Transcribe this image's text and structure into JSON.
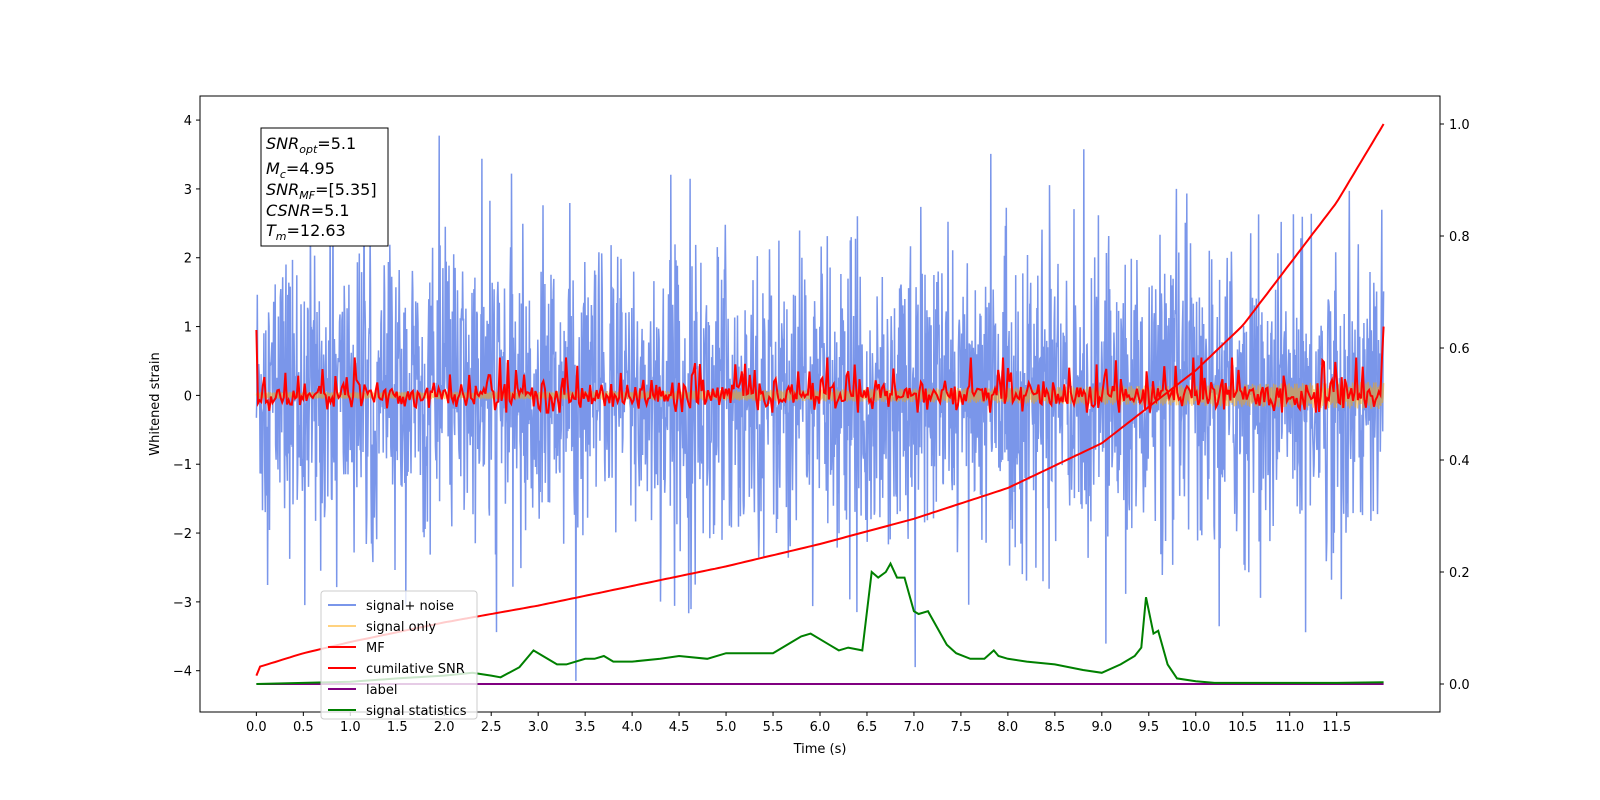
{
  "chart_data": {
    "type": "line",
    "xlabel": "Time (s)",
    "ylabel": "Whitened strain",
    "xlim": [
      -0.6,
      12.6
    ],
    "ylim": [
      -4.6,
      4.35
    ],
    "ylim_right": [
      -0.05,
      1.05
    ],
    "x_ticks": [
      "0.0",
      "0.5",
      "1.0",
      "1.5",
      "2.0",
      "2.5",
      "3.0",
      "3.5",
      "4.0",
      "4.5",
      "5.0",
      "5.5",
      "6.0",
      "6.5",
      "7.0",
      "7.5",
      "8.0",
      "8.5",
      "9.0",
      "9.5",
      "10.0",
      "10.5",
      "11.0",
      "11.5"
    ],
    "y_ticks": [
      "4",
      "3",
      "2",
      "1",
      "0",
      "−1",
      "−2",
      "−3",
      "−4"
    ],
    "y_ticks_right": [
      "1.0",
      "0.8",
      "0.6",
      "0.4",
      "0.2",
      "0.0"
    ],
    "annotation": {
      "snr_opt": {
        "base": "SNR",
        "sub": "opt",
        "value": "=5.1"
      },
      "mc": {
        "base": "M",
        "sub": "c",
        "value": "=4.95"
      },
      "snr_mf": {
        "base": "SNR",
        "sub": "MF",
        "value": "=[5.35]"
      },
      "csnr": {
        "base": "CSNR",
        "sub": "",
        "value": "=5.1"
      },
      "tm": {
        "base": "T",
        "sub": "m",
        "value": "=12.63"
      }
    },
    "legend": {
      "placement": "lower-left",
      "items": [
        {
          "label": "signal+ noise",
          "color": "#4169e1"
        },
        {
          "label": "signal only",
          "color": "#ffa500"
        },
        {
          "label": "MF",
          "color": "#ff0000"
        },
        {
          "label": "cumilative SNR",
          "color": "#ff0000"
        },
        {
          "label": "label",
          "color": "#800080"
        },
        {
          "label": "signal statistics",
          "color": "#008000"
        }
      ]
    },
    "series": [
      {
        "name": "signal+ noise",
        "axis": "left",
        "color": "#4169e1",
        "x_range": [
          0.0,
          12.0
        ],
        "description_values": {
          "envelope_max": 3.95,
          "envelope_min": -4.15,
          "typical_amplitude": 1.0
        }
      },
      {
        "name": "signal only",
        "axis": "left",
        "color": "#ffa500",
        "x_range": [
          0.0,
          12.0
        ],
        "amplitude_start": 0.05,
        "amplitude_end": 0.2
      },
      {
        "name": "MF",
        "axis": "left",
        "color": "#ff0000",
        "x_range": [
          0.0,
          12.0
        ],
        "start": 0.95,
        "end": 1.0,
        "typical_range": [
          -0.25,
          0.55
        ]
      },
      {
        "name": "cumilative SNR",
        "axis": "right",
        "color": "#ff0000",
        "x": [
          0.0,
          0.02,
          0.5,
          1.0,
          2.0,
          3.0,
          4.0,
          5.0,
          6.0,
          7.0,
          8.0,
          9.0,
          10.0,
          10.5,
          11.0,
          11.5,
          12.0
        ],
        "y": [
          0.015,
          0.03,
          0.055,
          0.075,
          0.11,
          0.14,
          0.175,
          0.21,
          0.25,
          0.295,
          0.35,
          0.43,
          0.56,
          0.64,
          0.75,
          0.86,
          1.0
        ]
      },
      {
        "name": "label",
        "axis": "right",
        "color": "#800080",
        "x": [
          0.0,
          12.0
        ],
        "y": [
          0.0,
          0.0
        ]
      },
      {
        "name": "signal statistics",
        "axis": "right",
        "color": "#008000",
        "x": [
          0.0,
          0.5,
          1.0,
          1.5,
          2.0,
          2.3,
          2.5,
          2.6,
          2.8,
          2.9,
          2.95,
          3.05,
          3.2,
          3.3,
          3.5,
          3.6,
          3.7,
          3.8,
          4.0,
          4.3,
          4.5,
          4.8,
          5.0,
          5.1,
          5.5,
          5.6,
          5.7,
          5.8,
          5.9,
          6.0,
          6.1,
          6.2,
          6.3,
          6.45,
          6.55,
          6.62,
          6.7,
          6.75,
          6.82,
          6.9,
          7.0,
          7.05,
          7.15,
          7.25,
          7.35,
          7.45,
          7.6,
          7.75,
          7.85,
          7.9,
          8.0,
          8.2,
          8.5,
          8.8,
          9.0,
          9.2,
          9.35,
          9.42,
          9.47,
          9.55,
          9.6,
          9.7,
          9.8,
          10.0,
          10.2,
          10.5,
          11.0,
          11.5,
          12.0
        ],
        "y": [
          0.0,
          0.002,
          0.004,
          0.01,
          0.015,
          0.02,
          0.015,
          0.012,
          0.03,
          0.05,
          0.06,
          0.05,
          0.035,
          0.035,
          0.045,
          0.045,
          0.05,
          0.04,
          0.04,
          0.045,
          0.05,
          0.045,
          0.055,
          0.055,
          0.055,
          0.065,
          0.075,
          0.085,
          0.09,
          0.08,
          0.07,
          0.06,
          0.065,
          0.06,
          0.2,
          0.19,
          0.2,
          0.215,
          0.19,
          0.19,
          0.13,
          0.125,
          0.13,
          0.1,
          0.07,
          0.055,
          0.045,
          0.045,
          0.06,
          0.05,
          0.045,
          0.04,
          0.035,
          0.025,
          0.02,
          0.035,
          0.05,
          0.065,
          0.155,
          0.09,
          0.095,
          0.035,
          0.01,
          0.005,
          0.002,
          0.002,
          0.002,
          0.002,
          0.003
        ]
      }
    ]
  }
}
